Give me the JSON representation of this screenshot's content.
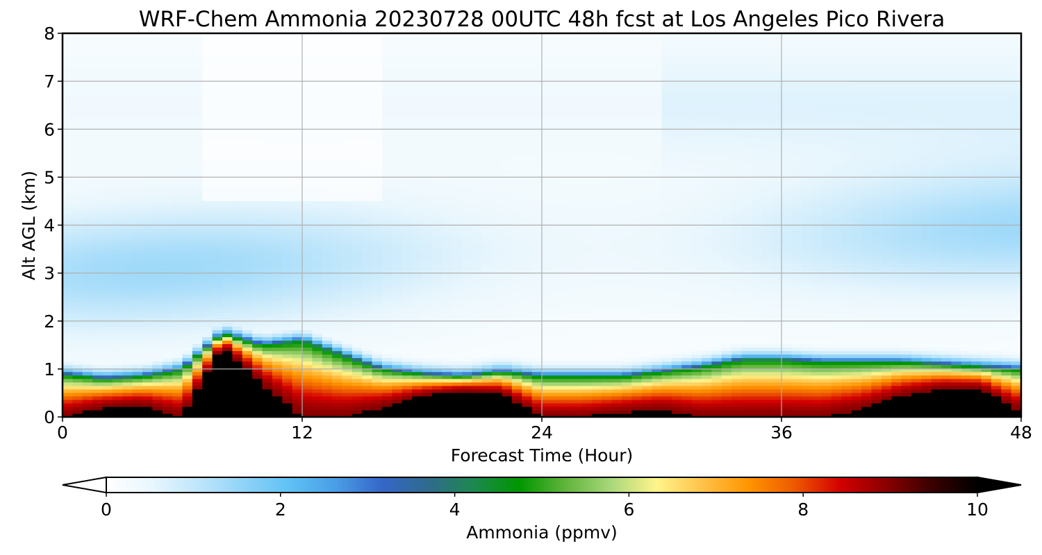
{
  "chart_data": {
    "type": "heatmap",
    "title": "WRF-Chem Ammonia  20230728 00UTC 48h fcst at Los Angeles Pico Rivera",
    "xlabel": "Forecast Time (Hour)",
    "ylabel": "Alt AGL (km)",
    "xlim": [
      0,
      48
    ],
    "ylim": [
      0,
      8
    ],
    "x_ticks": [
      "0",
      "12",
      "24",
      "36",
      "48"
    ],
    "y_ticks": [
      "0",
      "1",
      "2",
      "3",
      "4",
      "5",
      "6",
      "7",
      "8"
    ],
    "grid": true,
    "colorbar": {
      "label": "Ammonia  (ppmv)",
      "range": [
        0,
        10
      ],
      "ticks": [
        "0",
        "2",
        "4",
        "6",
        "8",
        "10"
      ],
      "extend": "both",
      "colors": [
        "#ffffff",
        "#e8f6fd",
        "#bfe6fb",
        "#8fd3f8",
        "#5fc1f5",
        "#4a9ee6",
        "#3567c8",
        "#2f6a8e",
        "#1e8850",
        "#009600",
        "#5fb43a",
        "#a8d77a",
        "#fff48c",
        "#ffc24a",
        "#ff9600",
        "#ee5a00",
        "#d40000",
        "#8b0000",
        "#3a0000",
        "#000000"
      ]
    },
    "x": [
      0,
      2,
      4,
      6,
      8,
      10,
      12,
      14,
      16,
      18,
      20,
      22,
      24,
      26,
      28,
      30,
      32,
      34,
      36,
      38,
      40,
      42,
      44,
      46,
      48
    ],
    "y": [
      0.1,
      0.3,
      0.5,
      0.7,
      0.9,
      1.1,
      1.3,
      1.5,
      1.7,
      2.0,
      2.5,
      3.0,
      3.5,
      4.0,
      4.5,
      5.0,
      5.5,
      6.0,
      6.5,
      7.0,
      7.5,
      8.0
    ],
    "boundary_layer_top_km": [
      0.9,
      0.8,
      0.85,
      1.0,
      1.75,
      1.5,
      1.6,
      1.3,
      1.0,
      0.9,
      0.85,
      0.95,
      0.85,
      0.85,
      0.85,
      0.95,
      1.05,
      1.2,
      1.2,
      1.15,
      1.15,
      1.15,
      1.1,
      1.05,
      1.0
    ],
    "black_core_top_km": [
      0.0,
      0.2,
      0.25,
      0.0,
      1.5,
      0.7,
      0.0,
      0.0,
      0.2,
      0.45,
      0.55,
      0.5,
      0.0,
      0.0,
      0.1,
      0.15,
      0.0,
      0.0,
      0.0,
      0.0,
      0.15,
      0.45,
      0.6,
      0.6,
      0.1
    ]
  }
}
